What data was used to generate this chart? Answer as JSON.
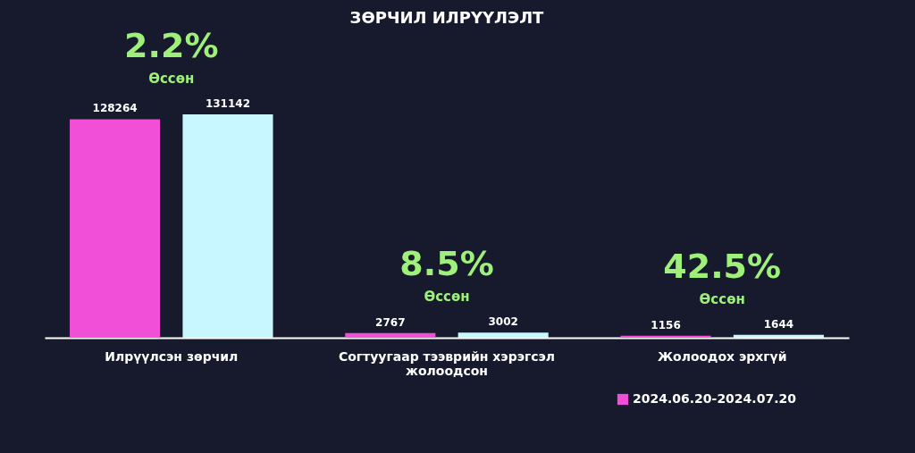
{
  "chart_data": {
    "type": "bar",
    "title": "ЗӨРЧИЛ ИЛРҮҮЛЭЛТ",
    "categories": [
      "Илрүүлсэн зөрчил",
      "Согтуугаар тээврийн хэрэгсэл жолоодсон",
      "Жолоодох эрхгүй"
    ],
    "series": [
      {
        "name": "2024.06.20-2024.07.20",
        "color": "#f24fd8",
        "values": [
          128264,
          2767,
          1156
        ]
      },
      {
        "color": "#c9f7ff",
        "values": [
          131142,
          3002,
          1644
        ]
      }
    ],
    "data_labels": true,
    "tick_labels": "x",
    "legend": "bottom right",
    "annotations": [
      "2.2%",
      "Өссөн",
      "8.5%",
      "Өссөн",
      "42.5%",
      "Өссөн"
    ]
  }
}
